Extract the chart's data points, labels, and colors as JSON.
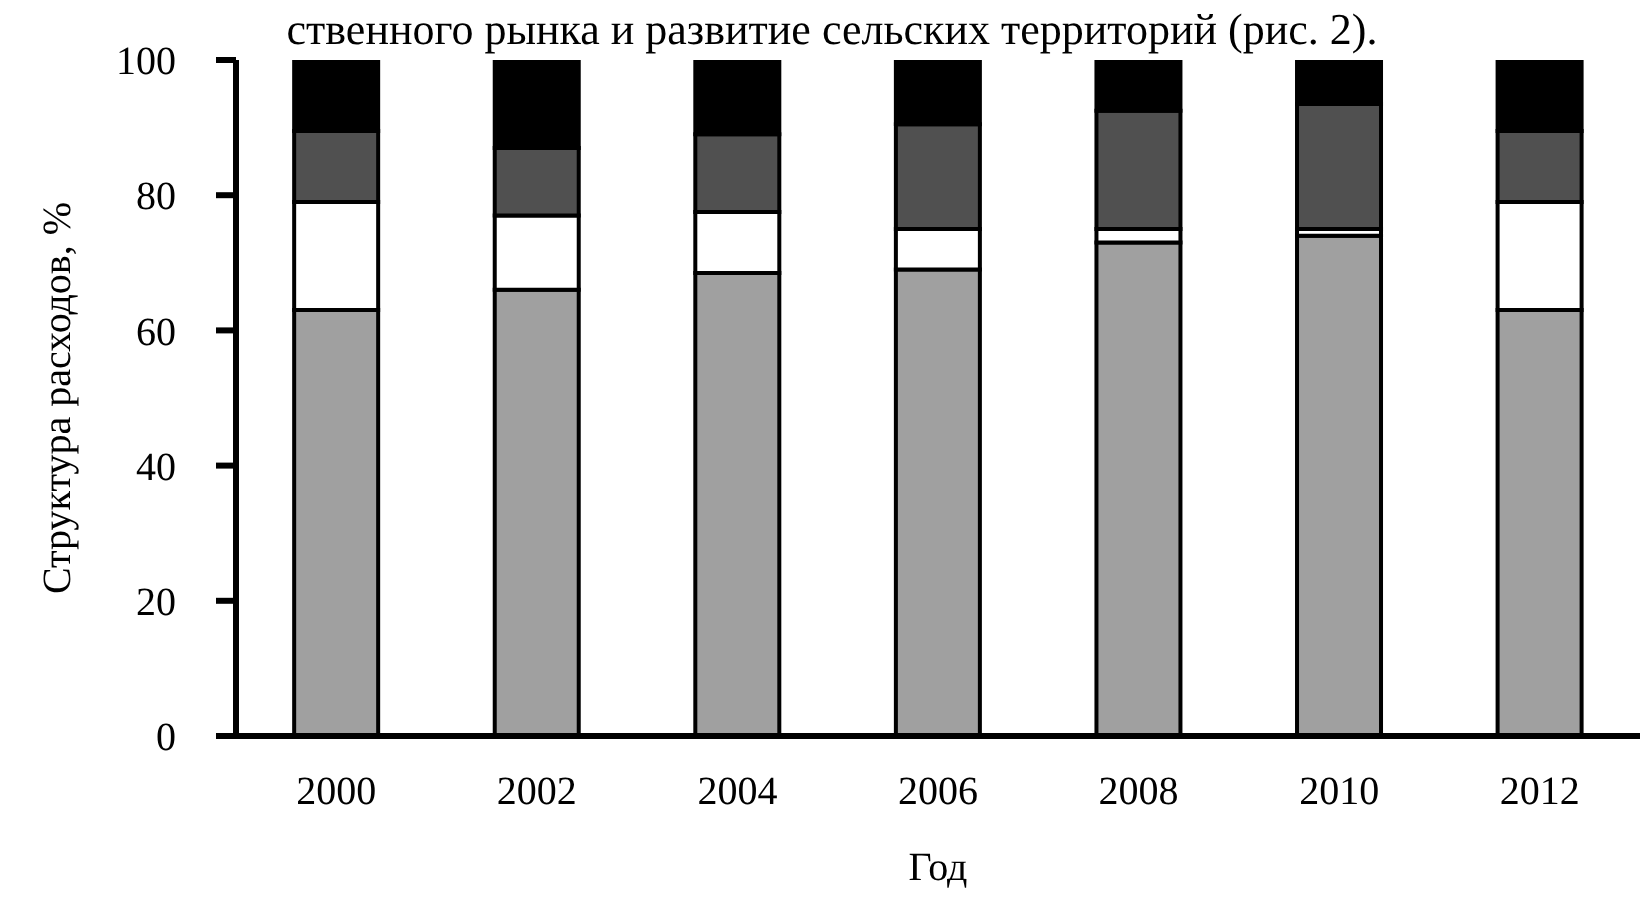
{
  "chart_data": {
    "type": "bar",
    "stacked": true,
    "xlabel": "Год",
    "ylabel": "Структура расходов, %",
    "annotations": [
      "ственного рынка и развитие сельских территорий (рис. 2)."
    ],
    "categories": [
      "2000",
      "2002",
      "2004",
      "2006",
      "2008",
      "2010",
      "2012"
    ],
    "series": [
      {
        "color": "#a0a0a0",
        "values": [
          63,
          66,
          68.5,
          69,
          73,
          74,
          63
        ]
      },
      {
        "color": "#ffffff",
        "values": [
          16,
          11,
          9,
          6,
          2,
          1,
          16
        ]
      },
      {
        "color": "#505050",
        "values": [
          10.5,
          10,
          11.5,
          15.5,
          17.5,
          18.5,
          10.5
        ]
      },
      {
        "color": "#000000",
        "values": [
          10.5,
          13,
          11,
          9.5,
          7.5,
          6.5,
          10.5
        ]
      }
    ],
    "ylim": [
      0,
      100
    ],
    "yticks": [
      0,
      20,
      40,
      60,
      80,
      100
    ],
    "grid": false,
    "legend": false
  }
}
